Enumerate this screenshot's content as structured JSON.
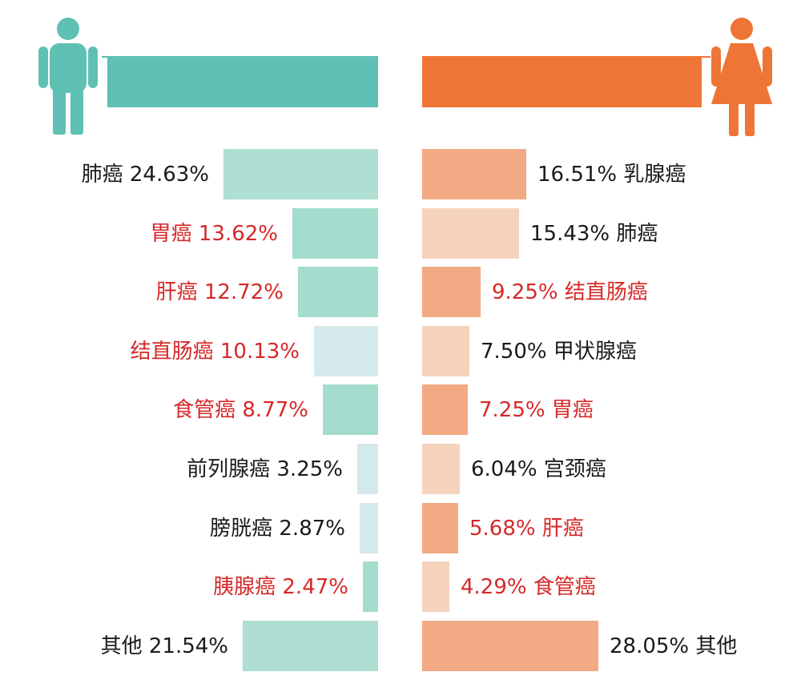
{
  "chart_data": {
    "type": "bar",
    "layout": "back-to-back horizontal bars",
    "series": [
      {
        "side": "left",
        "icon": "male-person-icon",
        "header_color": "#5fc0b4",
        "rows": [
          {
            "name": "肺癌",
            "value": 24.63,
            "display": "24.63%",
            "highlight": false,
            "bar_color": "#aedfd2"
          },
          {
            "name": "胃癌",
            "value": 13.62,
            "display": "13.62%",
            "highlight": true,
            "bar_color": "#a4dccd"
          },
          {
            "name": "肝癌",
            "value": 12.72,
            "display": "12.72%",
            "highlight": true,
            "bar_color": "#a4dccd"
          },
          {
            "name": "结直肠癌",
            "value": 10.13,
            "display": "10.13%",
            "highlight": true,
            "bar_color": "#d6e9ea"
          },
          {
            "name": "食管癌",
            "value": 8.77,
            "display": "8.77%",
            "highlight": true,
            "bar_color": "#a4dccd"
          },
          {
            "name": "前列腺癌",
            "value": 3.25,
            "display": "3.25%",
            "highlight": false,
            "bar_color": "#d6e9ea"
          },
          {
            "name": "膀胱癌",
            "value": 2.87,
            "display": "2.87%",
            "highlight": false,
            "bar_color": "#d6e9ea"
          },
          {
            "name": "胰腺癌",
            "value": 2.47,
            "display": "2.47%",
            "highlight": true,
            "bar_color": "#a4dccd"
          },
          {
            "name": "其他",
            "value": 21.54,
            "display": "21.54%",
            "highlight": false,
            "bar_color": "#aedfd2"
          }
        ]
      },
      {
        "side": "right",
        "icon": "female-person-icon",
        "header_color": "#ee7535",
        "rows": [
          {
            "name": "乳腺癌",
            "value": 16.51,
            "display": "16.51%",
            "highlight": false,
            "bar_color": "#f1aa83"
          },
          {
            "name": "肺癌",
            "value": 15.43,
            "display": "15.43%",
            "highlight": false,
            "bar_color": "#f6d3bd"
          },
          {
            "name": "结直肠癌",
            "value": 9.25,
            "display": "9.25%",
            "highlight": true,
            "bar_color": "#f1aa83"
          },
          {
            "name": "甲状腺癌",
            "value": 7.5,
            "display": "7.50%",
            "highlight": false,
            "bar_color": "#f6d3bd"
          },
          {
            "name": "胃癌",
            "value": 7.25,
            "display": "7.25%",
            "highlight": true,
            "bar_color": "#f1aa83"
          },
          {
            "name": "宫颈癌",
            "value": 6.04,
            "display": "6.04%",
            "highlight": false,
            "bar_color": "#f6d3bd"
          },
          {
            "name": "肝癌",
            "value": 5.68,
            "display": "5.68%",
            "highlight": true,
            "bar_color": "#f1aa83"
          },
          {
            "name": "食管癌",
            "value": 4.29,
            "display": "4.29%",
            "highlight": true,
            "bar_color": "#f6d3bd"
          },
          {
            "name": "其他",
            "value": 28.05,
            "display": "28.05%",
            "highlight": false,
            "bar_color": "#f1aa83"
          }
        ]
      }
    ],
    "colors": {
      "highlight_text": "#d62828",
      "normal_text": "#1a1a1a"
    }
  }
}
